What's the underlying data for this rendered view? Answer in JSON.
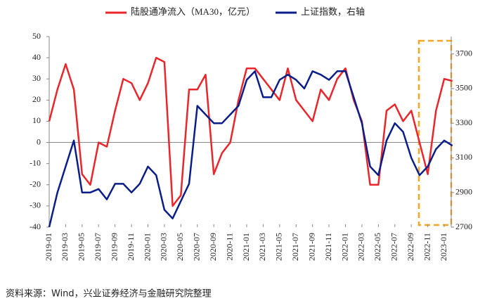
{
  "chart_data": {
    "type": "line",
    "categories": [
      "2019-01",
      null,
      "2019-03",
      null,
      "2019-05",
      null,
      "2019-07",
      null,
      "2019-09",
      null,
      "2019-11",
      null,
      "2020-01",
      null,
      "2020-03",
      null,
      "2020-05",
      null,
      "2020-07",
      null,
      "2020-09",
      null,
      "2020-11",
      null,
      "2021-01",
      null,
      "2021-03",
      null,
      "2021-05",
      null,
      "2021-07",
      null,
      "2021-09",
      null,
      "2021-11",
      null,
      "2022-01",
      null,
      "2022-03",
      null,
      "2022-05",
      null,
      "2022-07",
      null,
      "2022-09",
      null,
      "2022-11",
      null,
      "2023-01",
      null
    ],
    "series": [
      {
        "name": "陆股通净流入（MA30，亿元）",
        "color": "#e8262b",
        "values": [
          10,
          25,
          37,
          25,
          -15,
          -20,
          0,
          -2,
          15,
          30,
          28,
          20,
          28,
          40,
          38,
          -30,
          -25,
          25,
          25,
          32,
          -15,
          -5,
          0,
          20,
          35,
          35,
          30,
          25,
          20,
          35,
          20,
          15,
          10,
          25,
          20,
          30,
          35,
          20,
          10,
          -20,
          -20,
          15,
          18,
          10,
          15,
          0,
          -15,
          15,
          30,
          29
        ]
      },
      {
        "name": "上证指数，右轴",
        "color": "#0a1e8a",
        "axis": "y2",
        "values": [
          2700,
          2900,
          3050,
          3200,
          2900,
          2900,
          2920,
          2860,
          2950,
          2950,
          2900,
          2950,
          3050,
          3000,
          2800,
          2750,
          2850,
          2950,
          3400,
          3350,
          3300,
          3300,
          3350,
          3400,
          3550,
          3600,
          3450,
          3450,
          3550,
          3580,
          3550,
          3500,
          3600,
          3580,
          3550,
          3600,
          3600,
          3450,
          3300,
          3050,
          3000,
          3200,
          3300,
          3250,
          3100,
          3000,
          3050,
          3150,
          3200,
          3170
        ]
      }
    ],
    "ylim": [
      -40,
      50
    ],
    "yticks": [
      -40,
      -30,
      -20,
      -10,
      0,
      10,
      20,
      30,
      40,
      50
    ],
    "y2lim": [
      2700,
      3800
    ],
    "y2ticks": [
      2700,
      2900,
      3100,
      3300,
      3500,
      3700
    ],
    "source": "资料来源：Wind，兴业证券经济与金融研究院整理"
  }
}
